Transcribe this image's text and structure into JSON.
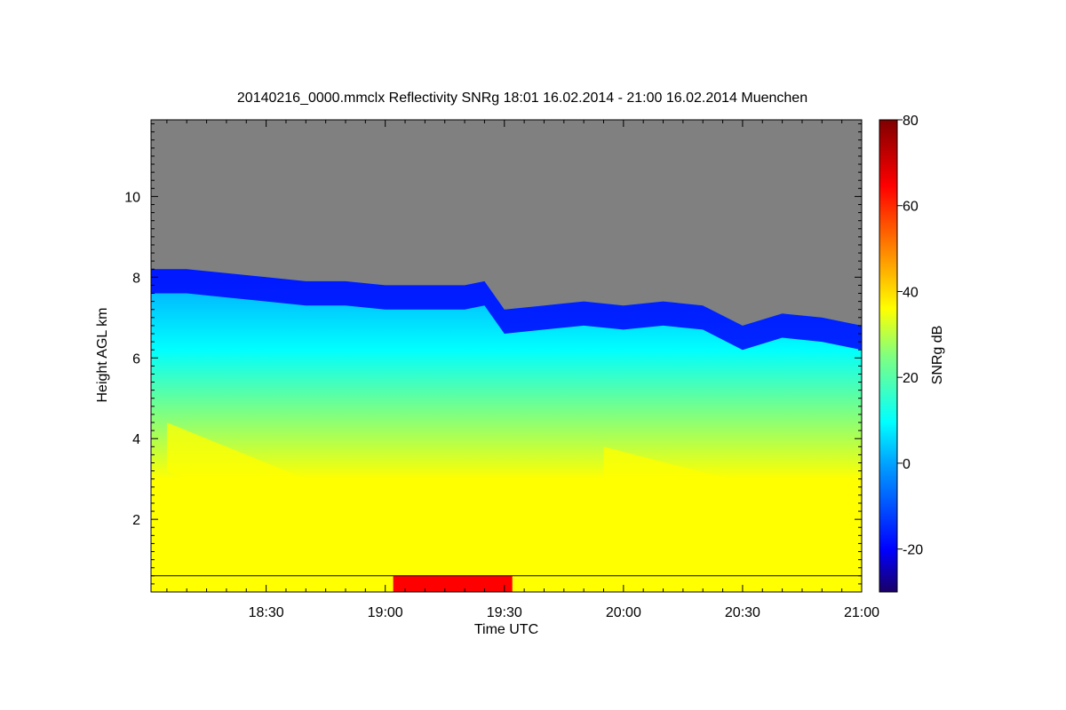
{
  "chart_data": {
    "type": "heatmap",
    "title": "20140216_0000.mmclx Reflectivity SNRg   18:01 16.02.2014 - 21:00 16.02.2014 Muenchen",
    "xlabel": "Time UTC",
    "ylabel": "Height AGL km",
    "colorbar_label": "SNRg dB",
    "x_range_minutes_utc": [
      1081,
      1260
    ],
    "y_range_km": [
      0.2,
      11.9
    ],
    "x_ticks": [
      {
        "label": "18:30",
        "value": 1110
      },
      {
        "label": "19:00",
        "value": 1140
      },
      {
        "label": "19:30",
        "value": 1170
      },
      {
        "label": "20:00",
        "value": 1200
      },
      {
        "label": "20:30",
        "value": 1230
      },
      {
        "label": "21:00",
        "value": 1260
      }
    ],
    "y_ticks": [
      {
        "label": "2",
        "value": 2
      },
      {
        "label": "4",
        "value": 4
      },
      {
        "label": "6",
        "value": 6
      },
      {
        "label": "8",
        "value": 8
      },
      {
        "label": "10",
        "value": 10
      }
    ],
    "colorbar_range": [
      -30,
      80
    ],
    "colorbar_ticks": [
      {
        "label": "-20",
        "value": -20
      },
      {
        "label": "0",
        "value": 0
      },
      {
        "label": "20",
        "value": 20
      },
      {
        "label": "40",
        "value": 40
      },
      {
        "label": "60",
        "value": 60
      },
      {
        "label": "80",
        "value": 80
      }
    ],
    "colormap": [
      "#000080",
      "#0000ff",
      "#00a0ff",
      "#00ffff",
      "#80ff80",
      "#ffff00",
      "#ff8000",
      "#ff0000",
      "#800000"
    ],
    "no_signal_color": "#808080",
    "cloud_top_km": [
      {
        "t": 1081,
        "h": 8.2
      },
      {
        "t": 1090,
        "h": 8.2
      },
      {
        "t": 1100,
        "h": 8.1
      },
      {
        "t": 1110,
        "h": 8.0
      },
      {
        "t": 1120,
        "h": 7.9
      },
      {
        "t": 1130,
        "h": 7.9
      },
      {
        "t": 1140,
        "h": 7.8
      },
      {
        "t": 1150,
        "h": 7.8
      },
      {
        "t": 1160,
        "h": 7.8
      },
      {
        "t": 1165,
        "h": 7.9
      },
      {
        "t": 1170,
        "h": 7.2
      },
      {
        "t": 1180,
        "h": 7.3
      },
      {
        "t": 1190,
        "h": 7.4
      },
      {
        "t": 1200,
        "h": 7.3
      },
      {
        "t": 1210,
        "h": 7.4
      },
      {
        "t": 1220,
        "h": 7.3
      },
      {
        "t": 1230,
        "h": 6.8
      },
      {
        "t": 1240,
        "h": 7.1
      },
      {
        "t": 1250,
        "h": 7.0
      },
      {
        "t": 1260,
        "h": 6.8
      }
    ],
    "bands": [
      {
        "name": "main-echo",
        "y0": 0.2,
        "y1_from": "cloud_top",
        "value": 10
      },
      {
        "name": "upper-fringe",
        "y_below_top": 0.6,
        "value": -20
      },
      {
        "name": "mid-layer",
        "y0": 0.5,
        "y1": 5.5,
        "value": 35
      },
      {
        "name": "fall-streak-1",
        "t0": 1085,
        "t1": 1150,
        "h0": 3.8,
        "h1": 1.2,
        "value": 45
      },
      {
        "name": "fall-streak-2",
        "t0": 1160,
        "t1": 1215,
        "h0": 2.2,
        "h1": 0.6,
        "value": 45
      },
      {
        "name": "fall-streak-3",
        "t0": 1195,
        "t1": 1250,
        "h0": 3.2,
        "h1": 1.8,
        "value": 45
      },
      {
        "name": "surface-rain",
        "t0": 1142,
        "t1": 1172,
        "y0": 0.2,
        "y1": 0.6,
        "value": 65
      }
    ],
    "grid": false,
    "legend": "colorbar-right"
  }
}
